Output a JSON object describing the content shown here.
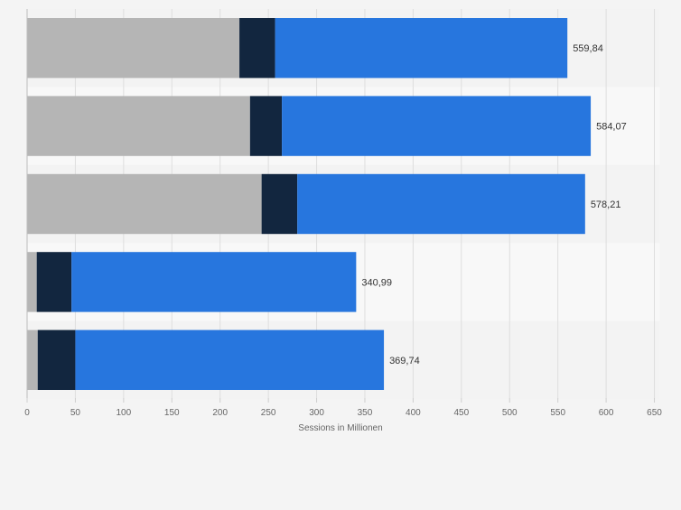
{
  "chart_data": {
    "type": "bar",
    "orientation": "horizontal",
    "stacked": true,
    "categories": [
      "",
      "",
      "",
      "",
      ""
    ],
    "series": [
      {
        "values": [
          220,
          231,
          243,
          10,
          11
        ],
        "color": "#b5b5b5"
      },
      {
        "values": [
          37,
          33,
          37,
          36,
          39
        ],
        "color": "#12263f"
      },
      {
        "values": [
          302.84,
          320.07,
          298.21,
          294.99,
          319.74
        ],
        "color": "#2776de"
      }
    ],
    "totals": [
      559.84,
      584.07,
      578.21,
      340.99,
      369.74
    ],
    "total_labels": [
      "559,84",
      "584,07",
      "578,21",
      "340,99",
      "369,74"
    ],
    "xlabel": "Sessions in Millionen",
    "ylabel": "",
    "xlim": [
      0,
      650
    ],
    "x_ticks": [
      "0",
      "50",
      "100",
      "150",
      "200",
      "250",
      "300",
      "350",
      "400",
      "450",
      "500",
      "550",
      "600",
      "650"
    ],
    "grid": true,
    "legend": "none"
  }
}
